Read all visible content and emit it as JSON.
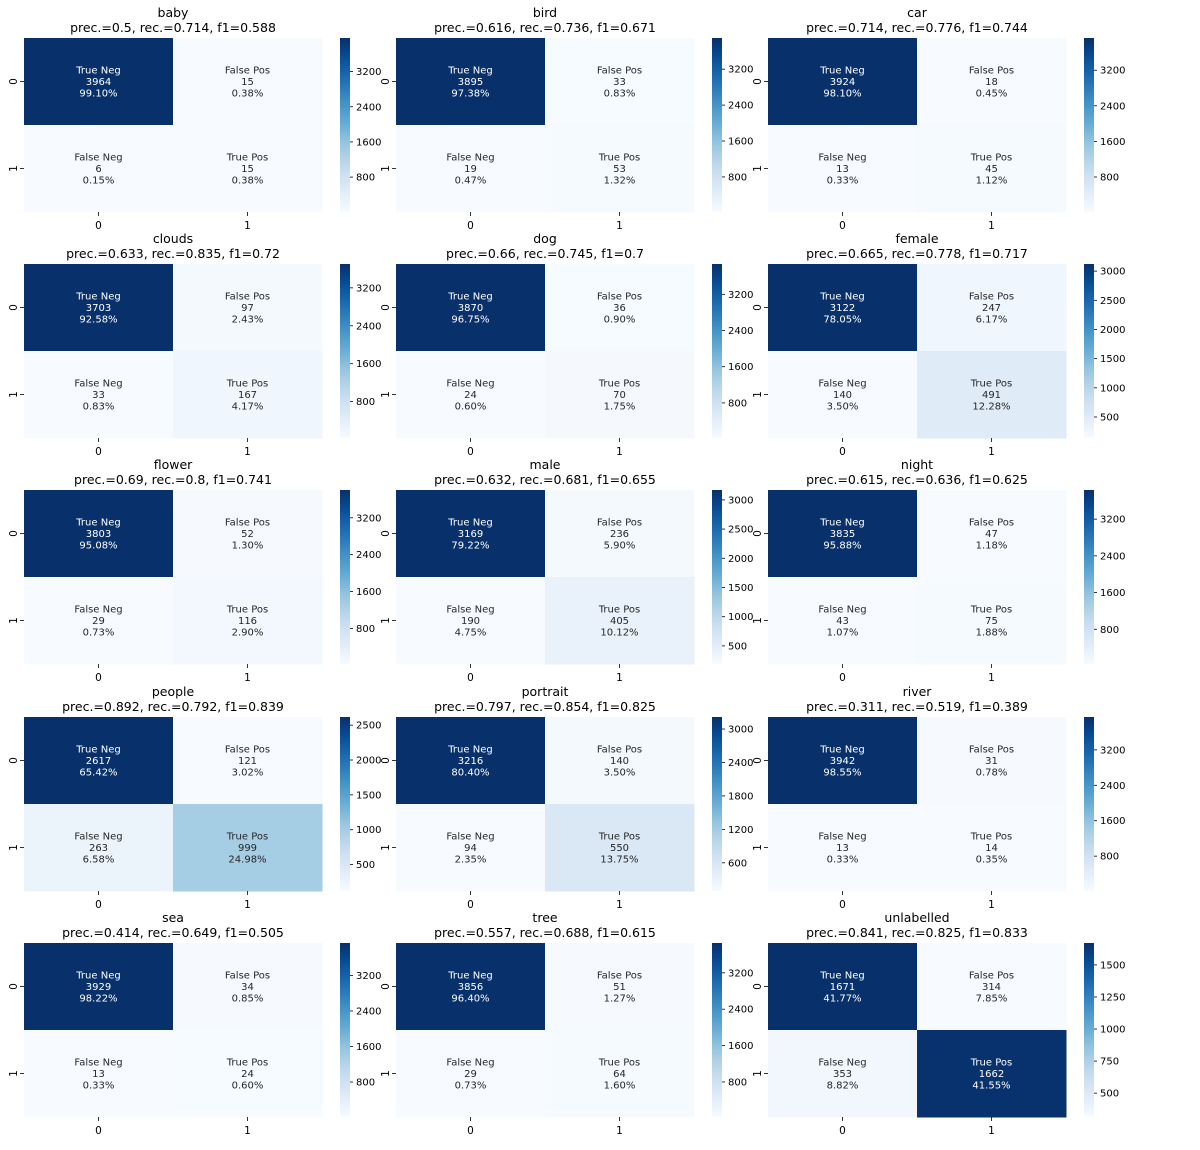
{
  "chart_data": [
    {
      "type": "heatmap",
      "title": "baby",
      "subtitle": "prec.=0.5, rec.=0.714, f1=0.588",
      "x_tick_labels": [
        "0",
        "1"
      ],
      "y_tick_labels": [
        "0",
        "1"
      ],
      "cells": [
        {
          "label": "True Neg",
          "count": 3964,
          "percent": "99.10%"
        },
        {
          "label": "False Pos",
          "count": 15,
          "percent": "0.38%"
        },
        {
          "label": "False Neg",
          "count": 6,
          "percent": "0.15%"
        },
        {
          "label": "True Pos",
          "count": 15,
          "percent": "0.38%"
        }
      ],
      "colorbar_ticks": [
        800,
        1600,
        2400,
        3200
      ]
    },
    {
      "type": "heatmap",
      "title": "bird",
      "subtitle": "prec.=0.616, rec.=0.736, f1=0.671",
      "x_tick_labels": [
        "0",
        "1"
      ],
      "y_tick_labels": [
        "0",
        "1"
      ],
      "cells": [
        {
          "label": "True Neg",
          "count": 3895,
          "percent": "97.38%"
        },
        {
          "label": "False Pos",
          "count": 33,
          "percent": "0.83%"
        },
        {
          "label": "False Neg",
          "count": 19,
          "percent": "0.47%"
        },
        {
          "label": "True Pos",
          "count": 53,
          "percent": "1.32%"
        }
      ],
      "colorbar_ticks": [
        800,
        1600,
        2400,
        3200
      ]
    },
    {
      "type": "heatmap",
      "title": "car",
      "subtitle": "prec.=0.714, rec.=0.776, f1=0.744",
      "x_tick_labels": [
        "0",
        "1"
      ],
      "y_tick_labels": [
        "0",
        "1"
      ],
      "cells": [
        {
          "label": "True Neg",
          "count": 3924,
          "percent": "98.10%"
        },
        {
          "label": "False Pos",
          "count": 18,
          "percent": "0.45%"
        },
        {
          "label": "False Neg",
          "count": 13,
          "percent": "0.33%"
        },
        {
          "label": "True Pos",
          "count": 45,
          "percent": "1.12%"
        }
      ],
      "colorbar_ticks": [
        800,
        1600,
        2400,
        3200
      ]
    },
    {
      "type": "heatmap",
      "title": "clouds",
      "subtitle": "prec.=0.633, rec.=0.835, f1=0.72",
      "x_tick_labels": [
        "0",
        "1"
      ],
      "y_tick_labels": [
        "0",
        "1"
      ],
      "cells": [
        {
          "label": "True Neg",
          "count": 3703,
          "percent": "92.58%"
        },
        {
          "label": "False Pos",
          "count": 97,
          "percent": "2.43%"
        },
        {
          "label": "False Neg",
          "count": 33,
          "percent": "0.83%"
        },
        {
          "label": "True Pos",
          "count": 167,
          "percent": "4.17%"
        }
      ],
      "colorbar_ticks": [
        800,
        1600,
        2400,
        3200
      ]
    },
    {
      "type": "heatmap",
      "title": "dog",
      "subtitle": "prec.=0.66, rec.=0.745, f1=0.7",
      "x_tick_labels": [
        "0",
        "1"
      ],
      "y_tick_labels": [
        "0",
        "1"
      ],
      "cells": [
        {
          "label": "True Neg",
          "count": 3870,
          "percent": "96.75%"
        },
        {
          "label": "False Pos",
          "count": 36,
          "percent": "0.90%"
        },
        {
          "label": "False Neg",
          "count": 24,
          "percent": "0.60%"
        },
        {
          "label": "True Pos",
          "count": 70,
          "percent": "1.75%"
        }
      ],
      "colorbar_ticks": [
        800,
        1600,
        2400,
        3200
      ]
    },
    {
      "type": "heatmap",
      "title": "female",
      "subtitle": "prec.=0.665, rec.=0.778, f1=0.717",
      "x_tick_labels": [
        "0",
        "1"
      ],
      "y_tick_labels": [
        "0",
        "1"
      ],
      "cells": [
        {
          "label": "True Neg",
          "count": 3122,
          "percent": "78.05%"
        },
        {
          "label": "False Pos",
          "count": 247,
          "percent": "6.17%"
        },
        {
          "label": "False Neg",
          "count": 140,
          "percent": "3.50%"
        },
        {
          "label": "True Pos",
          "count": 491,
          "percent": "12.28%"
        }
      ],
      "colorbar_ticks": [
        500,
        1000,
        1500,
        2000,
        2500,
        3000
      ]
    },
    {
      "type": "heatmap",
      "title": "flower",
      "subtitle": "prec.=0.69, rec.=0.8, f1=0.741",
      "x_tick_labels": [
        "0",
        "1"
      ],
      "y_tick_labels": [
        "0",
        "1"
      ],
      "cells": [
        {
          "label": "True Neg",
          "count": 3803,
          "percent": "95.08%"
        },
        {
          "label": "False Pos",
          "count": 52,
          "percent": "1.30%"
        },
        {
          "label": "False Neg",
          "count": 29,
          "percent": "0.73%"
        },
        {
          "label": "True Pos",
          "count": 116,
          "percent": "2.90%"
        }
      ],
      "colorbar_ticks": [
        800,
        1600,
        2400,
        3200
      ]
    },
    {
      "type": "heatmap",
      "title": "male",
      "subtitle": "prec.=0.632, rec.=0.681, f1=0.655",
      "x_tick_labels": [
        "0",
        "1"
      ],
      "y_tick_labels": [
        "0",
        "1"
      ],
      "cells": [
        {
          "label": "True Neg",
          "count": 3169,
          "percent": "79.22%"
        },
        {
          "label": "False Pos",
          "count": 236,
          "percent": "5.90%"
        },
        {
          "label": "False Neg",
          "count": 190,
          "percent": "4.75%"
        },
        {
          "label": "True Pos",
          "count": 405,
          "percent": "10.12%"
        }
      ],
      "colorbar_ticks": [
        500,
        1000,
        1500,
        2000,
        2500,
        3000
      ]
    },
    {
      "type": "heatmap",
      "title": "night",
      "subtitle": "prec.=0.615, rec.=0.636, f1=0.625",
      "x_tick_labels": [
        "0",
        "1"
      ],
      "y_tick_labels": [
        "0",
        "1"
      ],
      "cells": [
        {
          "label": "True Neg",
          "count": 3835,
          "percent": "95.88%"
        },
        {
          "label": "False Pos",
          "count": 47,
          "percent": "1.18%"
        },
        {
          "label": "False Neg",
          "count": 43,
          "percent": "1.07%"
        },
        {
          "label": "True Pos",
          "count": 75,
          "percent": "1.88%"
        }
      ],
      "colorbar_ticks": [
        800,
        1600,
        2400,
        3200
      ]
    },
    {
      "type": "heatmap",
      "title": "people",
      "subtitle": "prec.=0.892, rec.=0.792, f1=0.839",
      "x_tick_labels": [
        "0",
        "1"
      ],
      "y_tick_labels": [
        "0",
        "1"
      ],
      "cells": [
        {
          "label": "True Neg",
          "count": 2617,
          "percent": "65.42%"
        },
        {
          "label": "False Pos",
          "count": 121,
          "percent": "3.02%"
        },
        {
          "label": "False Neg",
          "count": 263,
          "percent": "6.58%"
        },
        {
          "label": "True Pos",
          "count": 999,
          "percent": "24.98%"
        }
      ],
      "colorbar_ticks": [
        500,
        1000,
        1500,
        2000,
        2500
      ]
    },
    {
      "type": "heatmap",
      "title": "portrait",
      "subtitle": "prec.=0.797, rec.=0.854, f1=0.825",
      "x_tick_labels": [
        "0",
        "1"
      ],
      "y_tick_labels": [
        "0",
        "1"
      ],
      "cells": [
        {
          "label": "True Neg",
          "count": 3216,
          "percent": "80.40%"
        },
        {
          "label": "False Pos",
          "count": 140,
          "percent": "3.50%"
        },
        {
          "label": "False Neg",
          "count": 94,
          "percent": "2.35%"
        },
        {
          "label": "True Pos",
          "count": 550,
          "percent": "13.75%"
        }
      ],
      "colorbar_ticks": [
        600,
        1200,
        1800,
        2400,
        3000
      ]
    },
    {
      "type": "heatmap",
      "title": "river",
      "subtitle": "prec.=0.311, rec.=0.519, f1=0.389",
      "x_tick_labels": [
        "0",
        "1"
      ],
      "y_tick_labels": [
        "0",
        "1"
      ],
      "cells": [
        {
          "label": "True Neg",
          "count": 3942,
          "percent": "98.55%"
        },
        {
          "label": "False Pos",
          "count": 31,
          "percent": "0.78%"
        },
        {
          "label": "False Neg",
          "count": 13,
          "percent": "0.33%"
        },
        {
          "label": "True Pos",
          "count": 14,
          "percent": "0.35%"
        }
      ],
      "colorbar_ticks": [
        800,
        1600,
        2400,
        3200
      ]
    },
    {
      "type": "heatmap",
      "title": "sea",
      "subtitle": "prec.=0.414, rec.=0.649, f1=0.505",
      "x_tick_labels": [
        "0",
        "1"
      ],
      "y_tick_labels": [
        "0",
        "1"
      ],
      "cells": [
        {
          "label": "True Neg",
          "count": 3929,
          "percent": "98.22%"
        },
        {
          "label": "False Pos",
          "count": 34,
          "percent": "0.85%"
        },
        {
          "label": "False Neg",
          "count": 13,
          "percent": "0.33%"
        },
        {
          "label": "True Pos",
          "count": 24,
          "percent": "0.60%"
        }
      ],
      "colorbar_ticks": [
        800,
        1600,
        2400,
        3200
      ]
    },
    {
      "type": "heatmap",
      "title": "tree",
      "subtitle": "prec.=0.557, rec.=0.688, f1=0.615",
      "x_tick_labels": [
        "0",
        "1"
      ],
      "y_tick_labels": [
        "0",
        "1"
      ],
      "cells": [
        {
          "label": "True Neg",
          "count": 3856,
          "percent": "96.40%"
        },
        {
          "label": "False Pos",
          "count": 51,
          "percent": "1.27%"
        },
        {
          "label": "False Neg",
          "count": 29,
          "percent": "0.73%"
        },
        {
          "label": "True Pos",
          "count": 64,
          "percent": "1.60%"
        }
      ],
      "colorbar_ticks": [
        800,
        1600,
        2400,
        3200
      ]
    },
    {
      "type": "heatmap",
      "title": "unlabelled",
      "subtitle": "prec.=0.841, rec.=0.825, f1=0.833",
      "x_tick_labels": [
        "0",
        "1"
      ],
      "y_tick_labels": [
        "0",
        "1"
      ],
      "cells": [
        {
          "label": "True Neg",
          "count": 1671,
          "percent": "41.77%"
        },
        {
          "label": "False Pos",
          "count": 314,
          "percent": "7.85%"
        },
        {
          "label": "False Neg",
          "count": 353,
          "percent": "8.82%"
        },
        {
          "label": "True Pos",
          "count": 1662,
          "percent": "41.55%"
        }
      ],
      "colorbar_ticks": [
        500,
        750,
        1000,
        1250,
        1500
      ]
    }
  ]
}
